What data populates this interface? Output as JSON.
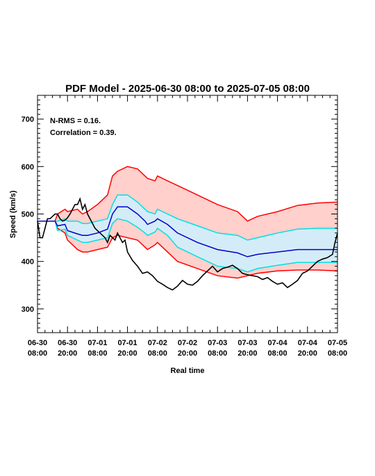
{
  "chart_data": {
    "type": "line",
    "title": "PDF Model - 2025-06-30 08:00 to 2025-07-05 08:00",
    "xlabel": "Real time",
    "ylabel": "Speed (km/s)",
    "xlim": [
      "2025-06-30 08:00",
      "2025-07-05 08:00"
    ],
    "ylim": [
      250,
      750
    ],
    "y_ticks": [
      300,
      400,
      500,
      600,
      700
    ],
    "x_ticks": [
      {
        "date": "2025-06-30 08:00",
        "line1": "06-30",
        "line2": "08:00"
      },
      {
        "date": "2025-06-30 20:00",
        "line1": "06-30",
        "line2": "20:00"
      },
      {
        "date": "2025-07-01 08:00",
        "line1": "07-01",
        "line2": "08:00"
      },
      {
        "date": "2025-07-01 20:00",
        "line1": "07-01",
        "line2": "20:00"
      },
      {
        "date": "2025-07-02 08:00",
        "line1": "07-02",
        "line2": "08:00"
      },
      {
        "date": "2025-07-02 20:00",
        "line1": "07-02",
        "line2": "20:00"
      },
      {
        "date": "2025-07-03 08:00",
        "line1": "07-03",
        "line2": "08:00"
      },
      {
        "date": "2025-07-03 20:00",
        "line1": "07-03",
        "line2": "20:00"
      },
      {
        "date": "2025-07-04 08:00",
        "line1": "07-04",
        "line2": "08:00"
      },
      {
        "date": "2025-07-04 20:00",
        "line1": "07-04",
        "line2": "20:00"
      },
      {
        "date": "2025-07-05 08:00",
        "line1": "07-05",
        "line2": "08:00"
      }
    ],
    "annotations": [
      "N-RMS = 0.16.",
      "Correlation = 0.39."
    ],
    "colors": {
      "outer_band": "#ff0000",
      "outer_fill": "#ffd0cc",
      "inner_band": "#00e0e0",
      "inner_fill": "#d4ecf8",
      "median": "#0000cc",
      "observed": "#000000"
    },
    "time_points": [
      "2025-06-30 08:00",
      "2025-06-30 15:00",
      "2025-06-30 16:00",
      "2025-06-30 19:00",
      "2025-06-30 20:00",
      "2025-07-01 00:00",
      "2025-07-01 02:00",
      "2025-07-01 04:00",
      "2025-07-01 08:00",
      "2025-07-01 12:00",
      "2025-07-01 14:00",
      "2025-07-01 16:00",
      "2025-07-01 20:00",
      "2025-07-02 00:00",
      "2025-07-02 03:00",
      "2025-07-02 04:00",
      "2025-07-02 07:00",
      "2025-07-02 08:00",
      "2025-07-02 12:00",
      "2025-07-02 16:00",
      "2025-07-03 00:00",
      "2025-07-03 08:00",
      "2025-07-03 16:00",
      "2025-07-03 20:00",
      "2025-07-04 00:00",
      "2025-07-04 08:00",
      "2025-07-04 16:00",
      "2025-07-05 00:00",
      "2025-07-05 08:00"
    ],
    "outer_upper": [
      485,
      485,
      500,
      510,
      505,
      510,
      500,
      505,
      520,
      540,
      580,
      590,
      600,
      595,
      580,
      575,
      570,
      580,
      570,
      560,
      540,
      520,
      505,
      485,
      495,
      505,
      518,
      523,
      525
    ],
    "outer_lower": [
      485,
      485,
      470,
      460,
      445,
      425,
      420,
      420,
      425,
      430,
      450,
      455,
      450,
      445,
      430,
      425,
      435,
      440,
      420,
      400,
      385,
      370,
      365,
      370,
      375,
      380,
      382,
      382,
      380
    ],
    "inner_upper": [
      485,
      485,
      485,
      490,
      485,
      485,
      480,
      480,
      485,
      490,
      520,
      540,
      540,
      525,
      510,
      505,
      500,
      510,
      500,
      490,
      475,
      460,
      455,
      445,
      450,
      460,
      468,
      470,
      470
    ],
    "inner_lower": [
      485,
      485,
      465,
      468,
      455,
      445,
      440,
      440,
      445,
      450,
      480,
      490,
      485,
      472,
      460,
      455,
      462,
      470,
      455,
      430,
      410,
      390,
      385,
      378,
      385,
      392,
      398,
      398,
      398
    ],
    "median": [
      485,
      485,
      475,
      478,
      465,
      458,
      455,
      455,
      460,
      468,
      500,
      515,
      515,
      500,
      485,
      478,
      485,
      490,
      478,
      460,
      440,
      425,
      418,
      410,
      415,
      420,
      425,
      425,
      425
    ],
    "observed_time": [
      "2025-06-30 08:00",
      "2025-06-30 09:00",
      "2025-06-30 10:00",
      "2025-06-30 11:00",
      "2025-06-30 12:00",
      "2025-06-30 13:00",
      "2025-06-30 14:00",
      "2025-06-30 15:00",
      "2025-06-30 16:00",
      "2025-06-30 17:00",
      "2025-06-30 18:00",
      "2025-06-30 19:00",
      "2025-06-30 20:00",
      "2025-06-30 21:00",
      "2025-06-30 22:00",
      "2025-06-30 23:00",
      "2025-07-01 00:00",
      "2025-07-01 01:00",
      "2025-07-01 02:00",
      "2025-07-01 03:00",
      "2025-07-01 04:00",
      "2025-07-01 05:00",
      "2025-07-01 06:00",
      "2025-07-01 07:00",
      "2025-07-01 08:00",
      "2025-07-01 09:00",
      "2025-07-01 10:00",
      "2025-07-01 11:00",
      "2025-07-01 12:00",
      "2025-07-01 13:00",
      "2025-07-01 14:00",
      "2025-07-01 15:00",
      "2025-07-01 16:00",
      "2025-07-01 17:00",
      "2025-07-01 18:00",
      "2025-07-01 19:00",
      "2025-07-01 20:00",
      "2025-07-01 22:00",
      "2025-07-02 00:00",
      "2025-07-02 02:00",
      "2025-07-02 04:00",
      "2025-07-02 06:00",
      "2025-07-02 08:00",
      "2025-07-02 10:00",
      "2025-07-02 12:00",
      "2025-07-02 14:00",
      "2025-07-02 16:00",
      "2025-07-02 18:00",
      "2025-07-02 20:00",
      "2025-07-02 22:00",
      "2025-07-03 00:00",
      "2025-07-03 02:00",
      "2025-07-03 04:00",
      "2025-07-03 06:00",
      "2025-07-03 08:00",
      "2025-07-03 10:00",
      "2025-07-03 12:00",
      "2025-07-03 14:00",
      "2025-07-03 16:00",
      "2025-07-03 18:00",
      "2025-07-03 20:00",
      "2025-07-03 22:00",
      "2025-07-04 00:00",
      "2025-07-04 02:00",
      "2025-07-04 04:00",
      "2025-07-04 06:00",
      "2025-07-04 08:00",
      "2025-07-04 10:00",
      "2025-07-04 12:00",
      "2025-07-04 14:00",
      "2025-07-04 16:00",
      "2025-07-04 18:00",
      "2025-07-04 20:00",
      "2025-07-04 22:00",
      "2025-07-05 00:00",
      "2025-07-05 02:00",
      "2025-07-05 04:00",
      "2025-07-05 06:00",
      "2025-07-05 07:00",
      "2025-07-05 08:00"
    ],
    "observed": [
      485,
      450,
      450,
      470,
      490,
      490,
      495,
      500,
      500,
      490,
      485,
      487,
      492,
      500,
      510,
      520,
      520,
      532,
      510,
      520,
      500,
      490,
      480,
      470,
      465,
      460,
      455,
      450,
      440,
      455,
      450,
      445,
      460,
      450,
      440,
      445,
      420,
      402,
      390,
      375,
      378,
      370,
      358,
      352,
      345,
      340,
      348,
      360,
      352,
      350,
      358,
      370,
      380,
      390,
      378,
      385,
      388,
      392,
      385,
      375,
      372,
      370,
      368,
      362,
      366,
      358,
      352,
      355,
      345,
      352,
      360,
      375,
      380,
      390,
      400,
      405,
      408,
      415,
      440,
      460
    ]
  }
}
